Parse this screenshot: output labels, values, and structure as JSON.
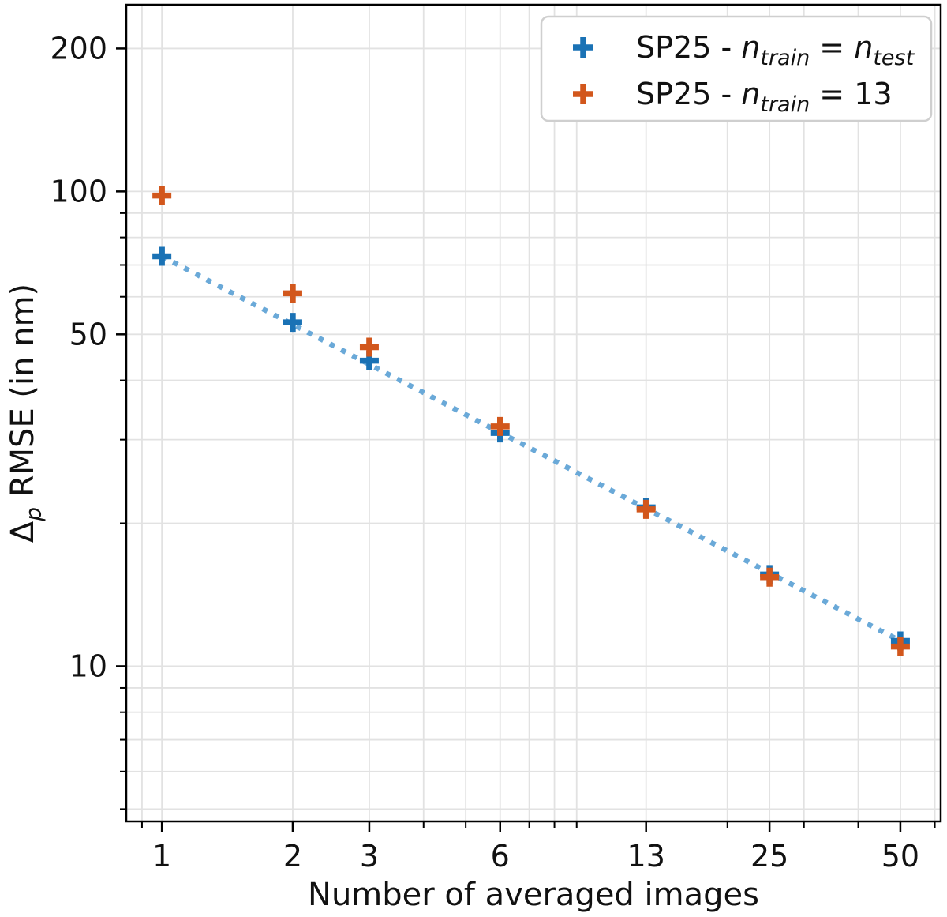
{
  "chart_data": {
    "type": "scatter",
    "title": "",
    "xlabel": "Number of averaged images",
    "ylabel": "Δp RMSE (in nm)",
    "ylabel_parts": [
      {
        "t": "Δ",
        "i": false,
        "sub": false
      },
      {
        "t": "p",
        "i": true,
        "sub": true
      },
      {
        "t": " RMSE (in nm)",
        "i": false,
        "sub": false
      }
    ],
    "x_scale": "log",
    "y_scale": "log",
    "xlim": [
      0.828,
      61.9
    ],
    "ylim": [
      4.71,
      247.3
    ],
    "x_ticks": [
      1,
      2,
      3,
      6,
      13,
      25,
      50
    ],
    "x_minor_ticks": [
      0.9,
      4,
      5,
      7,
      8,
      9,
      20,
      30,
      40,
      60
    ],
    "y_ticks": [
      10,
      50,
      100,
      200
    ],
    "y_minor_ticks": [
      5,
      6,
      7,
      8,
      9,
      20,
      30,
      40,
      60,
      70,
      80,
      90
    ],
    "grid": true,
    "grid_color": "#e2e2e2",
    "series": [
      {
        "name": "SP25 - n_train = n_test",
        "label_parts": [
          {
            "t": "SP25 - ",
            "i": false,
            "sub": false
          },
          {
            "t": "n",
            "i": true,
            "sub": false
          },
          {
            "t": "train",
            "i": true,
            "sub": true
          },
          {
            "t": " = ",
            "i": false,
            "sub": false
          },
          {
            "t": "n",
            "i": true,
            "sub": false
          },
          {
            "t": "test",
            "i": true,
            "sub": true
          }
        ],
        "color": "#1a72b5",
        "marker": "plus",
        "points": [
          [
            1,
            73
          ],
          [
            2,
            53
          ],
          [
            3,
            44
          ],
          [
            6,
            31
          ],
          [
            13,
            21.6
          ],
          [
            25,
            15.6
          ],
          [
            50,
            11.3
          ]
        ]
      },
      {
        "name": "SP25 - n_train = 13",
        "label_parts": [
          {
            "t": "SP25 - ",
            "i": false,
            "sub": false
          },
          {
            "t": "n",
            "i": true,
            "sub": false
          },
          {
            "t": "train",
            "i": true,
            "sub": true
          },
          {
            "t": " = 13",
            "i": false,
            "sub": false
          }
        ],
        "color": "#d2571c",
        "marker": "plus",
        "points": [
          [
            1,
            98
          ],
          [
            2,
            61
          ],
          [
            3,
            47
          ],
          [
            6,
            32
          ],
          [
            13,
            21.4
          ],
          [
            25,
            15.4
          ],
          [
            50,
            11.0
          ]
        ]
      }
    ],
    "fit_line": {
      "name": "power-law trend of blue series",
      "color": "#6aa9d8",
      "style": "dotted",
      "points": [
        [
          1,
          73
        ],
        [
          50,
          11.3
        ]
      ]
    },
    "legend": {
      "position": "upper right",
      "border_color": "#cfcfcf",
      "entries": [
        "SP25 - n_train = n_test",
        "SP25 - n_train = 13"
      ]
    },
    "frame_color": "#000000"
  }
}
